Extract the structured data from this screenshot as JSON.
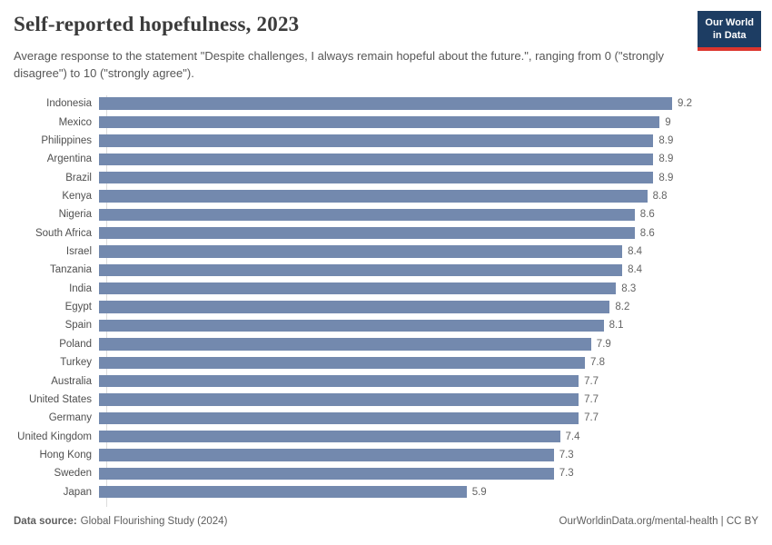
{
  "header": {
    "title": "Self-reported hopefulness, 2023",
    "subtitle": "Average response to the statement \"Despite challenges, I always remain hopeful about the future.\", ranging from 0 (\"strongly disagree\") to 10 (\"strongly agree\").",
    "logo": {
      "line1": "Our World",
      "line2": "in Data"
    }
  },
  "chart_data": {
    "type": "bar",
    "orientation": "horizontal",
    "title": "Self-reported hopefulness, 2023",
    "categories": [
      "Indonesia",
      "Mexico",
      "Philippines",
      "Argentina",
      "Brazil",
      "Kenya",
      "Nigeria",
      "South Africa",
      "Israel",
      "Tanzania",
      "India",
      "Egypt",
      "Spain",
      "Poland",
      "Turkey",
      "Australia",
      "United States",
      "Germany",
      "United Kingdom",
      "Hong Kong",
      "Sweden",
      "Japan"
    ],
    "values": [
      9.2,
      9,
      8.9,
      8.9,
      8.9,
      8.8,
      8.6,
      8.6,
      8.4,
      8.4,
      8.3,
      8.2,
      8.1,
      7.9,
      7.8,
      7.7,
      7.7,
      7.7,
      7.4,
      7.3,
      7.3,
      5.9
    ],
    "value_labels": [
      "9.2",
      "9",
      "8.9",
      "8.9",
      "8.9",
      "8.8",
      "8.6",
      "8.6",
      "8.4",
      "8.4",
      "8.3",
      "8.2",
      "8.1",
      "7.9",
      "7.8",
      "7.7",
      "7.7",
      "7.7",
      "7.4",
      "7.3",
      "7.3",
      "5.9"
    ],
    "xlabel": "",
    "ylabel": "",
    "xlim": [
      0,
      9.2
    ],
    "grid": false,
    "legend": false
  },
  "footer": {
    "source_label": "Data source:",
    "source_value": "Global Flourishing Study (2024)",
    "attribution": "OurWorldinData.org/mental-health | CC BY"
  },
  "colors": {
    "bar": "#7389ae",
    "logo_background": "#1d3d63",
    "logo_accent_red": "#dc352d",
    "axis_line": "#dcdcdc",
    "title_text": "#3b3b3b",
    "body_text": "#565656"
  }
}
